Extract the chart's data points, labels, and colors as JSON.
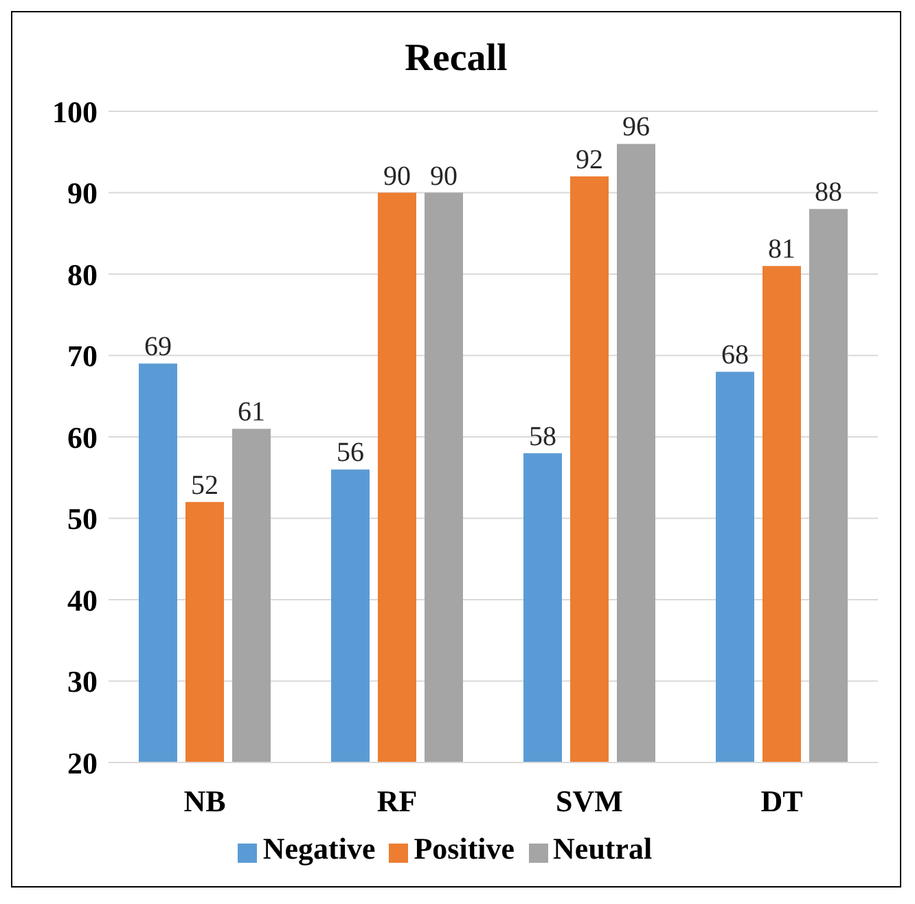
{
  "chart_data": {
    "type": "bar",
    "title": "Recall",
    "categories": [
      "NB",
      "RF",
      "SVM",
      "DT"
    ],
    "series": [
      {
        "name": "Negative",
        "color": "#5b9bd5",
        "values": [
          69,
          56,
          58,
          68
        ]
      },
      {
        "name": "Positive",
        "color": "#ed7d31",
        "values": [
          52,
          90,
          92,
          81
        ]
      },
      {
        "name": "Neutral",
        "color": "#a5a5a5",
        "values": [
          61,
          90,
          96,
          88
        ]
      }
    ],
    "ylim": [
      20,
      100
    ],
    "yticks": [
      20,
      30,
      40,
      50,
      60,
      70,
      80,
      90,
      100
    ],
    "grid": "y",
    "legend": "bottom",
    "data_labels": true
  }
}
